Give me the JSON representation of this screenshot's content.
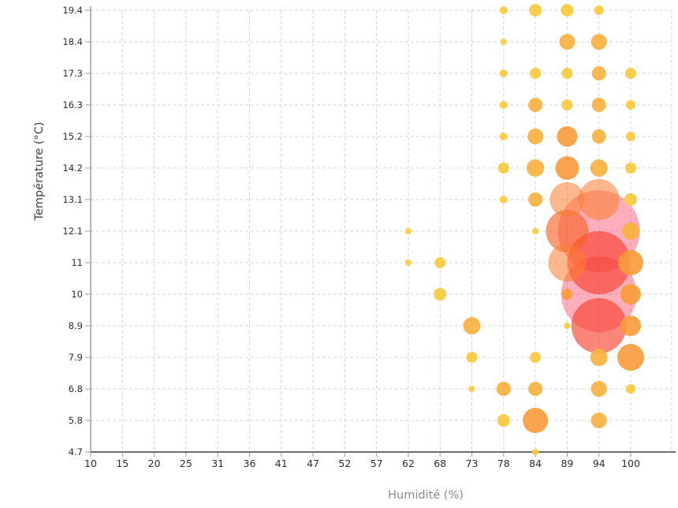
{
  "chart_data": {
    "type": "scatter",
    "subtype": "bubble",
    "title": "",
    "xlabel": "Humidité (%)",
    "ylabel": "Température (°C)",
    "legend": "none",
    "grid": true,
    "grid_style": "dashed-lightblue",
    "x_ticks": [
      "10",
      "15",
      "20",
      "25",
      "31",
      "36",
      "41",
      "47",
      "52",
      "57",
      "62",
      "68",
      "73",
      "78",
      "84",
      "89",
      "94",
      "100"
    ],
    "y_ticks": [
      "4.7",
      "5.8",
      "6.8",
      "7.9",
      "8.9",
      "10",
      "11",
      "12.1",
      "13.1",
      "14.2",
      "15.2",
      "16.3",
      "17.3",
      "18.4",
      "19.4"
    ],
    "colors": {
      "yellow_small": "rgba(250,203,67,0.95)",
      "amber_medium": "rgba(249,178,64,0.92)",
      "orange_large": "rgba(249,155,58,0.90)",
      "pale_orange_xl": "rgba(249,125,45,0.55)",
      "red_orange_xl": "rgba(248,95,35,0.62)",
      "red_xxl": "rgba(247,60,40,0.62)",
      "pink_max": "rgba(247,55,85,0.40)"
    },
    "points": [
      {
        "x": "78",
        "y": "19.4",
        "r": 5,
        "c": "yellow_small"
      },
      {
        "x": "84",
        "y": "19.4",
        "r": 8,
        "c": "yellow_small"
      },
      {
        "x": "89",
        "y": "19.4",
        "r": 8,
        "c": "yellow_small"
      },
      {
        "x": "94",
        "y": "19.4",
        "r": 6,
        "c": "yellow_small"
      },
      {
        "x": "78",
        "y": "18.4",
        "r": 4,
        "c": "yellow_small"
      },
      {
        "x": "89",
        "y": "18.4",
        "r": 10,
        "c": "amber_medium"
      },
      {
        "x": "94",
        "y": "18.4",
        "r": 10,
        "c": "amber_medium"
      },
      {
        "x": "78",
        "y": "17.3",
        "r": 5,
        "c": "yellow_small"
      },
      {
        "x": "84",
        "y": "17.3",
        "r": 7,
        "c": "yellow_small"
      },
      {
        "x": "89",
        "y": "17.3",
        "r": 7,
        "c": "yellow_small"
      },
      {
        "x": "94",
        "y": "17.3",
        "r": 9,
        "c": "amber_medium"
      },
      {
        "x": "100",
        "y": "17.3",
        "r": 7,
        "c": "yellow_small"
      },
      {
        "x": "78",
        "y": "16.3",
        "r": 5,
        "c": "yellow_small"
      },
      {
        "x": "84",
        "y": "16.3",
        "r": 9,
        "c": "amber_medium"
      },
      {
        "x": "89",
        "y": "16.3",
        "r": 7,
        "c": "yellow_small"
      },
      {
        "x": "94",
        "y": "16.3",
        "r": 9,
        "c": "amber_medium"
      },
      {
        "x": "100",
        "y": "16.3",
        "r": 6,
        "c": "yellow_small"
      },
      {
        "x": "78",
        "y": "15.2",
        "r": 5,
        "c": "yellow_small"
      },
      {
        "x": "84",
        "y": "15.2",
        "r": 10,
        "c": "amber_medium"
      },
      {
        "x": "89",
        "y": "15.2",
        "r": 13,
        "c": "orange_large"
      },
      {
        "x": "94",
        "y": "15.2",
        "r": 9,
        "c": "amber_medium"
      },
      {
        "x": "100",
        "y": "15.2",
        "r": 6,
        "c": "yellow_small"
      },
      {
        "x": "78",
        "y": "14.2",
        "r": 7,
        "c": "yellow_small"
      },
      {
        "x": "84",
        "y": "14.2",
        "r": 11,
        "c": "amber_medium"
      },
      {
        "x": "89",
        "y": "14.2",
        "r": 15,
        "c": "orange_large"
      },
      {
        "x": "94",
        "y": "14.2",
        "r": 11,
        "c": "amber_medium"
      },
      {
        "x": "100",
        "y": "14.2",
        "r": 7,
        "c": "yellow_small"
      },
      {
        "x": "78",
        "y": "13.1",
        "r": 5,
        "c": "yellow_small"
      },
      {
        "x": "84",
        "y": "13.1",
        "r": 9,
        "c": "amber_medium"
      },
      {
        "x": "89",
        "y": "13.1",
        "r": 22,
        "c": "pale_orange_xl"
      },
      {
        "x": "94",
        "y": "13.1",
        "r": 26,
        "c": "pale_orange_xl"
      },
      {
        "x": "100",
        "y": "13.1",
        "r": 8,
        "c": "yellow_small"
      },
      {
        "x": "62",
        "y": "12.1",
        "r": 4,
        "c": "yellow_small"
      },
      {
        "x": "84",
        "y": "12.1",
        "r": 4,
        "c": "yellow_small"
      },
      {
        "x": "89",
        "y": "12.1",
        "r": 27,
        "c": "red_orange_xl"
      },
      {
        "x": "94",
        "y": "12.1",
        "r": 52,
        "c": "pink_max"
      },
      {
        "x": "100",
        "y": "12.1",
        "r": 11,
        "c": "amber_medium"
      },
      {
        "x": "62",
        "y": "11",
        "r": 4,
        "c": "yellow_small"
      },
      {
        "x": "68",
        "y": "11",
        "r": 7,
        "c": "yellow_small"
      },
      {
        "x": "89",
        "y": "11",
        "r": 24,
        "c": "pale_orange_xl"
      },
      {
        "x": "94",
        "y": "11",
        "r": 40,
        "c": "red_xxl"
      },
      {
        "x": "100",
        "y": "11",
        "r": 16,
        "c": "orange_large"
      },
      {
        "x": "68",
        "y": "10",
        "r": 8,
        "c": "yellow_small"
      },
      {
        "x": "89",
        "y": "10",
        "r": 7,
        "c": "orange_large"
      },
      {
        "x": "94",
        "y": "10",
        "r": 48,
        "c": "pink_max"
      },
      {
        "x": "100",
        "y": "10",
        "r": 13,
        "c": "orange_large"
      },
      {
        "x": "73",
        "y": "8.9",
        "r": 11,
        "c": "amber_medium"
      },
      {
        "x": "89",
        "y": "8.9",
        "r": 4,
        "c": "yellow_small"
      },
      {
        "x": "94",
        "y": "8.9",
        "r": 35,
        "c": "red_xxl"
      },
      {
        "x": "100",
        "y": "8.9",
        "r": 13,
        "c": "orange_large"
      },
      {
        "x": "73",
        "y": "7.9",
        "r": 7,
        "c": "yellow_small"
      },
      {
        "x": "84",
        "y": "7.9",
        "r": 7,
        "c": "yellow_small"
      },
      {
        "x": "94",
        "y": "7.9",
        "r": 11,
        "c": "amber_medium"
      },
      {
        "x": "100",
        "y": "7.9",
        "r": 17,
        "c": "orange_large"
      },
      {
        "x": "73",
        "y": "6.8",
        "r": 4,
        "c": "yellow_small"
      },
      {
        "x": "78",
        "y": "6.8",
        "r": 9,
        "c": "amber_medium"
      },
      {
        "x": "84",
        "y": "6.8",
        "r": 9,
        "c": "amber_medium"
      },
      {
        "x": "94",
        "y": "6.8",
        "r": 10,
        "c": "amber_medium"
      },
      {
        "x": "100",
        "y": "6.8",
        "r": 6,
        "c": "yellow_small"
      },
      {
        "x": "78",
        "y": "5.8",
        "r": 8,
        "c": "yellow_small"
      },
      {
        "x": "84",
        "y": "5.8",
        "r": 16,
        "c": "orange_large"
      },
      {
        "x": "94",
        "y": "5.8",
        "r": 10,
        "c": "amber_medium"
      },
      {
        "x": "84",
        "y": "4.7",
        "r": 4,
        "c": "yellow_small"
      }
    ],
    "style": {
      "grid_color": "#ccd9e4",
      "axis_line_color": "#9aa0a5",
      "bottom_axis_color": "#6e6e6e",
      "tick_color": "#9aa0a5",
      "tick_label_color": "#2e2e2e",
      "y_title_color": "#3d3d3d",
      "x_title_color": "#8a8a8a"
    }
  }
}
